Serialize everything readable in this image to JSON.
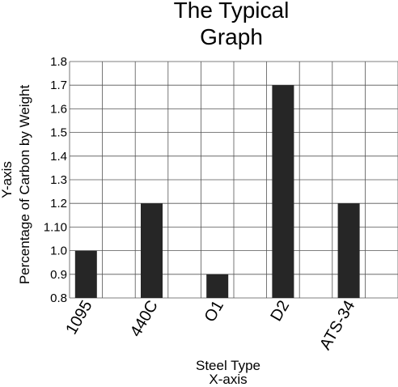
{
  "chart_data": {
    "type": "bar",
    "title": [
      "The Typical",
      "Graph"
    ],
    "categories": [
      "1095",
      "440C",
      "O1",
      "D2",
      "ATS-34"
    ],
    "values": [
      1.0,
      1.2,
      0.9,
      1.7,
      1.2
    ],
    "xlabel": [
      "Steel Type",
      "X-axis"
    ],
    "ylabel": [
      "Y-axis",
      "Percentage of Carbon by Weight"
    ],
    "ylim": [
      0.8,
      1.8
    ],
    "yticks": [
      "0.8",
      "0.9",
      "1.0",
      "1.10",
      "1.2",
      "1.3",
      "1.4",
      "1.5",
      "1.6",
      "1.7",
      "1.8"
    ],
    "grid": true,
    "bar_color": "#262626"
  }
}
